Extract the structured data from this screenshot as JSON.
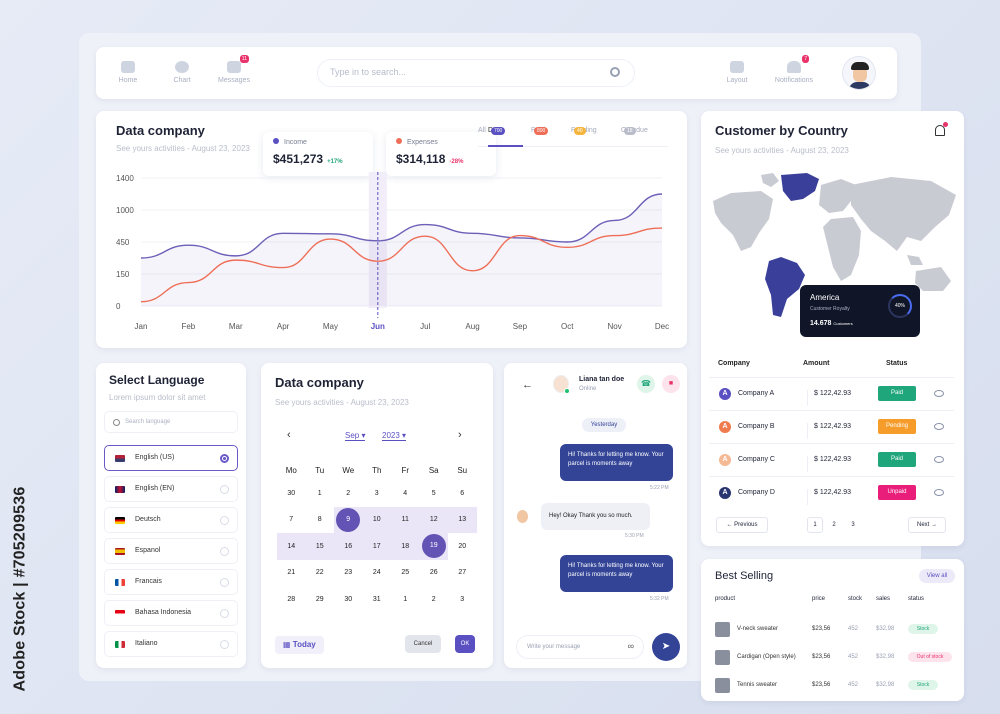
{
  "watermark": "Adobe Stock | #705209536",
  "topbar": {
    "nav": [
      {
        "label": "Home",
        "icon": "home-icon"
      },
      {
        "label": "Chart",
        "icon": "pie-chart-icon"
      },
      {
        "label": "Messages",
        "icon": "mail-icon",
        "badge": "11"
      }
    ],
    "search_placeholder": "Type in to search...",
    "right": [
      {
        "label": "Layout",
        "icon": "grid-icon"
      },
      {
        "label": "Notifications",
        "icon": "bell-icon",
        "badge": "7"
      }
    ]
  },
  "data_company": {
    "title": "Data company",
    "subtitle": "See yours activities - August 23, 2023",
    "income": {
      "label": "Income",
      "value": "$451,273",
      "change": "+17%"
    },
    "expenses": {
      "label": "Expenses",
      "value": "$314,118",
      "change": "-28%"
    },
    "tabs": [
      {
        "label": "All"
      },
      {
        "label": "Data",
        "badge": "700"
      },
      {
        "label": "Paid",
        "badge": "800"
      },
      {
        "label": "Pending",
        "badge": "40"
      },
      {
        "label": "Overdue",
        "badge": "18"
      }
    ],
    "y_ticks": [
      "1400",
      "1000",
      "450",
      "150",
      "0"
    ],
    "months": [
      "Jan",
      "Feb",
      "Mar",
      "Apr",
      "May",
      "Jun",
      "Jul",
      "Aug",
      "Sep",
      "Oct",
      "Nov",
      "Dec"
    ],
    "highlight_month": "Jun"
  },
  "chart_data": {
    "type": "line",
    "x": [
      "Jan",
      "Feb",
      "Mar",
      "Apr",
      "May",
      "Jun",
      "Jul",
      "Aug",
      "Sep",
      "Oct",
      "Nov",
      "Dec"
    ],
    "series": [
      {
        "name": "Income",
        "color": "#6b5fb8",
        "values": [
          300,
          420,
          320,
          600,
          590,
          470,
          750,
          600,
          520,
          450,
          820,
          1200
        ]
      },
      {
        "name": "Expenses",
        "color": "#ee6e57",
        "values": [
          20,
          110,
          280,
          210,
          500,
          270,
          550,
          180,
          560,
          400,
          560,
          690
        ]
      }
    ],
    "y_ticks": [
      0,
      150,
      450,
      1000,
      1400
    ]
  },
  "language": {
    "title": "Select Language",
    "subtitle": "Lorem ipsum dolor sit amet",
    "search_placeholder": "Search language",
    "items": [
      {
        "label": "English (US)",
        "selected": true
      },
      {
        "label": "English (EN)"
      },
      {
        "label": "Deutsch"
      },
      {
        "label": "Espanol"
      },
      {
        "label": "Francais"
      },
      {
        "label": "Bahasa Indonesia"
      },
      {
        "label": "Italiano"
      }
    ]
  },
  "calendar": {
    "title": "Data company",
    "subtitle": "See yours activities - August 23, 2023",
    "month": "Sep",
    "year": "2023",
    "weekdays": [
      "Mo",
      "Tu",
      "We",
      "Th",
      "Fr",
      "Sa",
      "Su"
    ],
    "weeks": [
      [
        "30",
        "1",
        "2",
        "3",
        "4",
        "5",
        "6"
      ],
      [
        "7",
        "8",
        "9",
        "10",
        "11",
        "12",
        "13"
      ],
      [
        "14",
        "15",
        "16",
        "17",
        "18",
        "19",
        "20"
      ],
      [
        "21",
        "22",
        "23",
        "24",
        "25",
        "26",
        "27"
      ],
      [
        "28",
        "29",
        "30",
        "31",
        "1",
        "2",
        "3"
      ]
    ],
    "today_label": "Today",
    "cancel_label": "Cancel",
    "ok_label": "OK"
  },
  "chat": {
    "name": "Liana tan doe",
    "status": "Online",
    "day": "Yesterday",
    "messages": [
      {
        "text": "Hi! Thanks for letting me know. Your parcel is moments away",
        "time": "5:22 PM",
        "dir": "out"
      },
      {
        "text": "Hey! Okay Thank you so much.",
        "time": "5:30 PM",
        "dir": "in"
      },
      {
        "text": "Hi! Thanks for letting me know. Your parcel is moments away",
        "time": "5:32 PM",
        "dir": "out"
      }
    ],
    "input_placeholder": "Write your message"
  },
  "customer": {
    "title": "Customer by Country",
    "subtitle": "See yours activities - August 23, 2023",
    "tooltip": {
      "country": "America",
      "label": "Customer Royalty",
      "percent": "40%",
      "value": "14.678",
      "unit": "Customers"
    },
    "headers": [
      "Company",
      "Amount",
      "Status"
    ],
    "rows": [
      {
        "letter": "A",
        "name": "Company A",
        "amount": "$ 122,42.93",
        "status": "Paid",
        "color": "#20a67b",
        "icon": "#5b50c2"
      },
      {
        "letter": "A",
        "name": "Company B",
        "amount": "$ 122,42.93",
        "status": "Pending",
        "color": "#f59c2b",
        "icon": "#ef7b4f"
      },
      {
        "letter": "A",
        "name": "Company C",
        "amount": "$ 122,42.93",
        "status": "Paid",
        "color": "#20a67b",
        "icon": "#f5b993"
      },
      {
        "letter": "A",
        "name": "Company D",
        "amount": "$ 122,42.93",
        "status": "Unpaid",
        "color": "#e91e7b",
        "icon": "#2a3670"
      }
    ],
    "prev": "Previous",
    "next": "Next",
    "pages": [
      "1",
      "2",
      "3"
    ]
  },
  "best": {
    "title": "Best Selling",
    "view_all": "View all",
    "headers": [
      "product",
      "price",
      "stock",
      "sales",
      "status"
    ],
    "rows": [
      {
        "product": "V-neck sweater",
        "price": "$23,56",
        "stock": "452",
        "sales": "$32,98",
        "status": "Stock"
      },
      {
        "product": "Cardigan (Open style)",
        "price": "$23,56",
        "stock": "452",
        "sales": "$32,98",
        "status": "Out of stock"
      },
      {
        "product": "Tennis sweater",
        "price": "$23,56",
        "stock": "452",
        "sales": "$32,98",
        "status": "Stock"
      }
    ]
  }
}
